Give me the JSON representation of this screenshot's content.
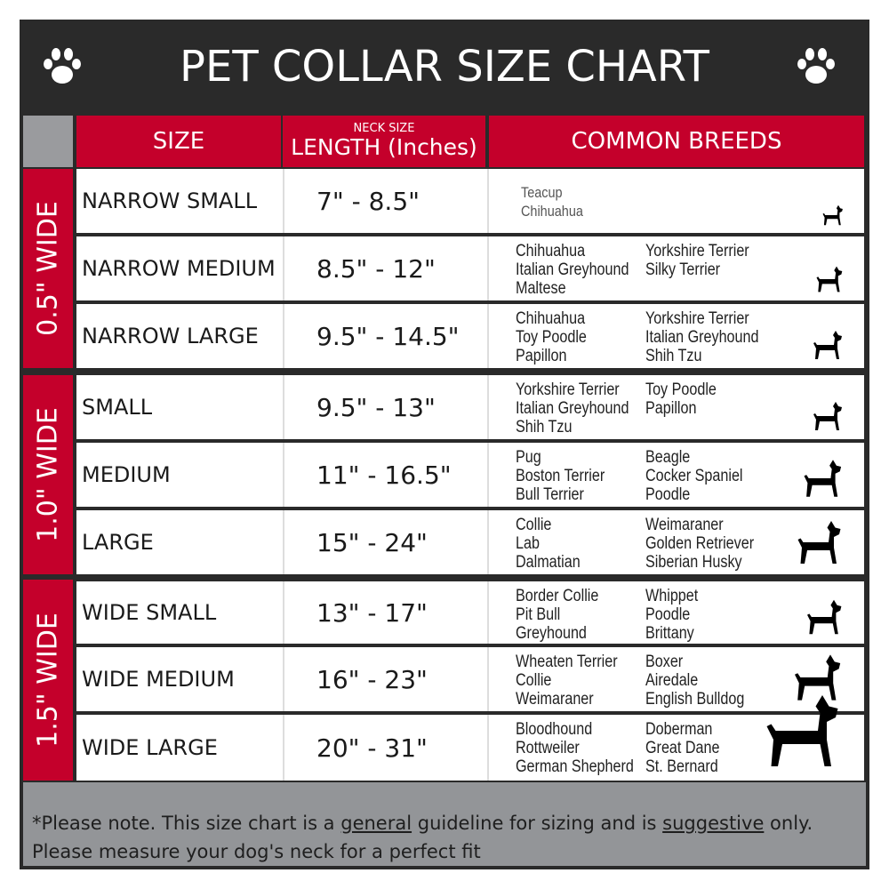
{
  "title": "PET COLLAR SIZE CHART",
  "header": {
    "size": "SIZE",
    "neck_size": "NECK SIZE",
    "length": "LENGTH (Inches)",
    "breeds": "COMMON BREEDS"
  },
  "groups": [
    {
      "label": "0.5\" WIDE"
    },
    {
      "label": "1.0\" WIDE"
    },
    {
      "label": "1.5\" WIDE"
    }
  ],
  "rows": [
    {
      "size": "NARROW SMALL",
      "length": "7\" - 8.5\"",
      "breeds_left": [
        "Teacup",
        "Chihuahua"
      ],
      "breeds_right": []
    },
    {
      "size": "NARROW MEDIUM",
      "length": "8.5\" - 12\"",
      "breeds_left": [
        "Chihuahua",
        "Italian Greyhound",
        "Maltese"
      ],
      "breeds_right": [
        "Yorkshire Terrier",
        "Silky Terrier"
      ]
    },
    {
      "size": "NARROW LARGE",
      "length": "9.5\" - 14.5\"",
      "breeds_left": [
        "Chihuahua",
        "Toy Poodle",
        "Papillon"
      ],
      "breeds_right": [
        "Yorkshire Terrier",
        "Italian Greyhound",
        "Shih Tzu"
      ]
    },
    {
      "size": "SMALL",
      "length": "9.5\" - 13\"",
      "breeds_left": [
        "Yorkshire Terrier",
        "Italian Greyhound",
        "Shih Tzu"
      ],
      "breeds_right": [
        "Toy Poodle",
        "Papillon"
      ]
    },
    {
      "size": "MEDIUM",
      "length": "11\" - 16.5\"",
      "breeds_left": [
        "Pug",
        "Boston Terrier",
        "Bull Terrier"
      ],
      "breeds_right": [
        "Beagle",
        "Cocker Spaniel",
        "Poodle"
      ]
    },
    {
      "size": "LARGE",
      "length": "15\" - 24\"",
      "breeds_left": [
        "Collie",
        "Lab",
        "Dalmatian"
      ],
      "breeds_right": [
        "Weimaraner",
        "Golden Retriever",
        "Siberian Husky"
      ]
    },
    {
      "size": "WIDE SMALL",
      "length": "13\" - 17\"",
      "breeds_left": [
        "Border Collie",
        "Pit Bull",
        "Greyhound"
      ],
      "breeds_right": [
        "Whippet",
        "Poodle",
        "Brittany"
      ]
    },
    {
      "size": "WIDE MEDIUM",
      "length": "16\" - 23\"",
      "breeds_left": [
        "Wheaten Terrier",
        "Collie",
        "Weimaraner"
      ],
      "breeds_right": [
        "Boxer",
        "Airedale",
        "English Bulldog"
      ]
    },
    {
      "size": "WIDE LARGE",
      "length": "20\" - 31\"",
      "breeds_left": [
        "Bloodhound",
        "Rottweiler",
        "German Shepherd"
      ],
      "breeds_right": [
        "Doberman",
        "Great Dane",
        "St. Bernard"
      ]
    }
  ],
  "footer": {
    "part1": "*Please note. This size chart is a ",
    "general": "general",
    "part2": " guideline for sizing and is ",
    "suggestive": "suggestive",
    "part3": " only.",
    "line2": "Please measure your dog's neck for a perfect fit"
  },
  "colors": {
    "accent": "#c4002b",
    "dark": "#2a2a2a",
    "gray": "#939598"
  }
}
